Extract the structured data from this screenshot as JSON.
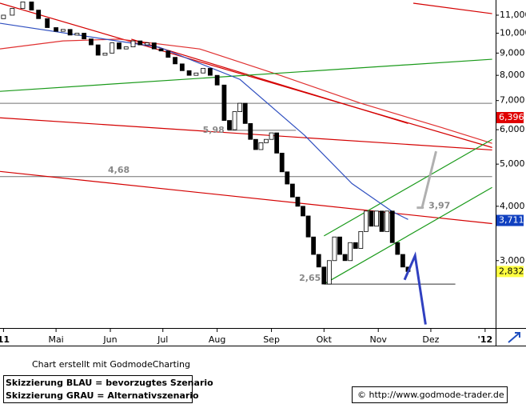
{
  "chart_data": {
    "type": "candlestick",
    "x": [
      0,
      5,
      11,
      16,
      20,
      25,
      30,
      34,
      38,
      42,
      46,
      50,
      54,
      58,
      62,
      66,
      70,
      74,
      78,
      82,
      86,
      90,
      94,
      98,
      102,
      106,
      110,
      114,
      118,
      122,
      126,
      129,
      132,
      135,
      138,
      141,
      144,
      147,
      150,
      153,
      156,
      159,
      162,
      165,
      168,
      171,
      174,
      177,
      180,
      183,
      186,
      189,
      192,
      195,
      198,
      201,
      204,
      207,
      210,
      213,
      216,
      219,
      222,
      225,
      228,
      231
    ],
    "open": [
      10800,
      11000,
      11400,
      11800,
      11300,
      10800,
      10300,
      10100,
      10200,
      9900,
      10000,
      9700,
      9400,
      8900,
      9000,
      9500,
      9200,
      9300,
      9600,
      9400,
      9500,
      9200,
      9100,
      8800,
      8500,
      8200,
      8000,
      8100,
      8300,
      8000,
      7600,
      6300,
      6000,
      6600,
      6900,
      6200,
      5700,
      5400,
      5600,
      5700,
      5900,
      5300,
      4800,
      4500,
      4200,
      4000,
      3800,
      3400,
      3100,
      2900,
      2650,
      3000,
      3400,
      3100,
      3000,
      3300,
      3200,
      3500,
      3900,
      3600,
      3900,
      3500,
      3900,
      3300,
      3100,
      2900
    ],
    "close": [
      11000,
      11400,
      11800,
      11300,
      10800,
      10300,
      10100,
      10200,
      9900,
      10000,
      9700,
      9400,
      8900,
      9000,
      9500,
      9200,
      9300,
      9600,
      9400,
      9500,
      9200,
      9100,
      8800,
      8500,
      8200,
      8000,
      8100,
      8300,
      8000,
      7600,
      6300,
      6000,
      6600,
      6900,
      6200,
      5700,
      5400,
      5600,
      5700,
      5900,
      5300,
      4800,
      4500,
      4200,
      4000,
      3800,
      3400,
      3100,
      2900,
      2650,
      3000,
      3400,
      3100,
      3000,
      3300,
      3200,
      3500,
      3900,
      3600,
      3900,
      3500,
      3900,
      3300,
      3100,
      2900,
      2832
    ],
    "up_color": "#ffffff",
    "down_color": "#000000",
    "xlim": [
      -2,
      281
    ],
    "ylim": [
      2100,
      11920
    ],
    "log_scale": true,
    "xticks": [
      {
        "value": 0,
        "label": "11"
      },
      {
        "value": 30,
        "label": "Mai"
      },
      {
        "value": 61,
        "label": "Jun"
      },
      {
        "value": 91,
        "label": "Jul"
      },
      {
        "value": 122,
        "label": "Aug"
      },
      {
        "value": 153,
        "label": "Sep"
      },
      {
        "value": 183,
        "label": "Okt"
      },
      {
        "value": 214,
        "label": "Nov"
      },
      {
        "value": 244,
        "label": "Dez"
      },
      {
        "value": 275,
        "label": "'12"
      }
    ],
    "yticks": [
      {
        "value": 3000,
        "label": "3,000"
      },
      {
        "value": 4000,
        "label": "4,000"
      },
      {
        "value": 5000,
        "label": "5,000"
      },
      {
        "value": 6000,
        "label": "6,000"
      },
      {
        "value": 7000,
        "label": "7,000"
      },
      {
        "value": 8000,
        "label": "8,000"
      },
      {
        "value": 9000,
        "label": "9,000"
      },
      {
        "value": 10000,
        "label": "10,000"
      },
      {
        "value": 11000,
        "label": "11,000"
      }
    ],
    "lines": [
      {
        "color": "#d40000",
        "x": [
          -2,
          279
        ],
        "values": [
          11720,
          5460
        ]
      },
      {
        "color": "#d40000",
        "x": [
          234,
          279
        ],
        "values": [
          11720,
          11090
        ]
      },
      {
        "color": "#d40000",
        "x": [
          -2,
          279
        ],
        "values": [
          6390,
          5390
        ]
      },
      {
        "color": "#d40000",
        "x": [
          -2,
          279
        ],
        "values": [
          4810,
          3650
        ]
      },
      {
        "color": "#e03030",
        "x": [
          -2,
          34,
          66,
          112,
          158,
          204,
          250,
          279
        ],
        "values": [
          9200,
          9600,
          9690,
          9200,
          8000,
          6900,
          6070,
          5580
        ]
      },
      {
        "color": "#d40000",
        "x": [
          73,
          231
        ],
        "values": [
          9690,
          6200
        ]
      },
      {
        "color": "#1a9a1a",
        "x": [
          -2,
          279
        ],
        "values": [
          7350,
          8710
        ]
      },
      {
        "color": "#1a9a1a",
        "x": [
          183,
          279
        ],
        "values": [
          2650,
          4420
        ]
      },
      {
        "color": "#1a9a1a",
        "x": [
          183,
          279
        ],
        "values": [
          3420,
          5700
        ]
      },
      {
        "color": "#3050c0",
        "x": [
          -2,
          89,
          135,
          172,
          199,
          222,
          231
        ],
        "values": [
          10540,
          9280,
          7830,
          5820,
          4510,
          3890,
          3730
        ]
      }
    ],
    "levels": [
      {
        "value": 6900,
        "x": [
          -2,
          279
        ],
        "color": "#707070"
      },
      {
        "value": 4680,
        "label": "4,68",
        "x": [
          -2,
          279
        ],
        "color": "#707070"
      },
      {
        "value": 5980,
        "label": "5,98",
        "x": [
          128,
          167
        ],
        "color": "#707070"
      },
      {
        "value": 2650,
        "label": "2,65",
        "x": [
          183,
          258
        ],
        "color": "#303030"
      },
      {
        "value": 3970,
        "label": "3,97",
        "x": [
          236,
          240
        ],
        "color": "#a0a0a0"
      }
    ],
    "arrows": [
      {
        "color": "#3040c0",
        "x": [
          229,
          235,
          241
        ],
        "values": [
          2710,
          3080,
          2140
        ]
      },
      {
        "color": "#b0b0b0",
        "x": [
          236,
          239,
          247
        ],
        "values": [
          3970,
          3970,
          5350
        ]
      }
    ],
    "price_tags": [
      {
        "value": 6396,
        "label": "6,396",
        "color": "#e00000",
        "text_color": "#ffffff"
      },
      {
        "value": 3711,
        "label": "3,711",
        "color": "#1040c0",
        "text_color": "#ffffff"
      },
      {
        "value": 2832,
        "label": "2,832",
        "color": "#ffff40",
        "text_color": "#000000"
      }
    ]
  },
  "footer": {
    "credit": "Chart erstellt mit GodmodeCharting",
    "legend": [
      "Skizzierung BLAU = bevorzugtes Szenario",
      "Skizzierung GRAU = Alternativszenario"
    ],
    "url": "© http://www.godmode-trader.de"
  }
}
